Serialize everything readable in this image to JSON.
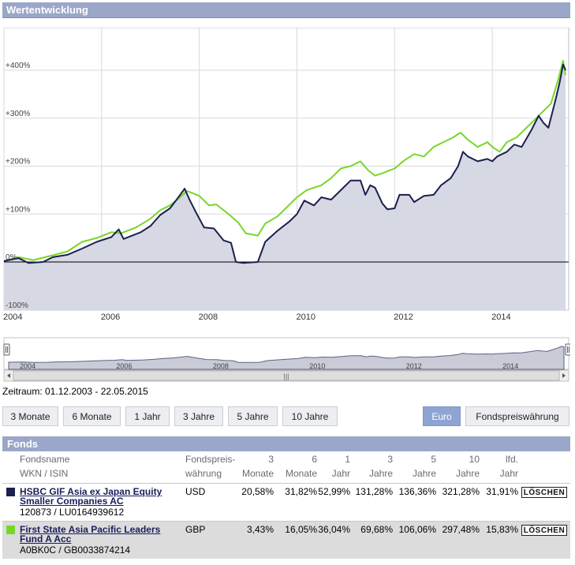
{
  "panel": {
    "title": "Wertentwicklung"
  },
  "chart_data": {
    "type": "area",
    "ylim": [
      -100,
      430
    ],
    "xlim": [
      2004,
      2015.5
    ],
    "x_ticks": [
      "2004",
      "2006",
      "2008",
      "2010",
      "2012",
      "2014"
    ],
    "y_ticks": [
      "+400%",
      "+300%",
      "+200%",
      "+100%",
      "0%",
      "-100%"
    ],
    "grid": true,
    "series": [
      {
        "name": "HSBC GIF Asia ex Japan Equity Smaller Companies AC",
        "color": "#1c1f4f",
        "fill": "area",
        "points": [
          [
            2004,
            2
          ],
          [
            2004.3,
            8
          ],
          [
            2004.5,
            -2
          ],
          [
            2004.8,
            0
          ],
          [
            2005.0,
            10
          ],
          [
            2005.3,
            15
          ],
          [
            2005.6,
            28
          ],
          [
            2005.9,
            42
          ],
          [
            2006.2,
            52
          ],
          [
            2006.35,
            68
          ],
          [
            2006.45,
            48
          ],
          [
            2006.8,
            62
          ],
          [
            2007.0,
            75
          ],
          [
            2007.2,
            98
          ],
          [
            2007.4,
            112
          ],
          [
            2007.55,
            132
          ],
          [
            2007.7,
            153
          ],
          [
            2007.8,
            130
          ],
          [
            2007.95,
            100
          ],
          [
            2008.1,
            72
          ],
          [
            2008.3,
            70
          ],
          [
            2008.5,
            45
          ],
          [
            2008.65,
            40
          ],
          [
            2008.75,
            0
          ],
          [
            2008.9,
            -2
          ],
          [
            2009.2,
            0
          ],
          [
            2009.35,
            42
          ],
          [
            2009.6,
            65
          ],
          [
            2009.85,
            85
          ],
          [
            2010.0,
            100
          ],
          [
            2010.15,
            128
          ],
          [
            2010.35,
            118
          ],
          [
            2010.5,
            135
          ],
          [
            2010.7,
            130
          ],
          [
            2010.9,
            150
          ],
          [
            2011.1,
            170
          ],
          [
            2011.3,
            170
          ],
          [
            2011.4,
            140
          ],
          [
            2011.5,
            160
          ],
          [
            2011.6,
            155
          ],
          [
            2011.75,
            122
          ],
          [
            2011.85,
            110
          ],
          [
            2012.0,
            112
          ],
          [
            2012.1,
            140
          ],
          [
            2012.3,
            140
          ],
          [
            2012.4,
            125
          ],
          [
            2012.6,
            138
          ],
          [
            2012.8,
            140
          ],
          [
            2012.95,
            160
          ],
          [
            2013.15,
            175
          ],
          [
            2013.3,
            200
          ],
          [
            2013.4,
            230
          ],
          [
            2013.5,
            220
          ],
          [
            2013.7,
            210
          ],
          [
            2013.9,
            215
          ],
          [
            2014.0,
            210
          ],
          [
            2014.1,
            220
          ],
          [
            2014.3,
            230
          ],
          [
            2014.45,
            245
          ],
          [
            2014.6,
            240
          ],
          [
            2014.8,
            275
          ],
          [
            2014.95,
            305
          ],
          [
            2015.05,
            290
          ],
          [
            2015.15,
            280
          ],
          [
            2015.3,
            340
          ],
          [
            2015.38,
            375
          ],
          [
            2015.45,
            412
          ],
          [
            2015.5,
            400
          ]
        ]
      },
      {
        "name": "First State Asia Pacific Leaders Fund A Acc",
        "color": "#78d62a",
        "fill": "none",
        "points": [
          [
            2004,
            2
          ],
          [
            2004.3,
            10
          ],
          [
            2004.6,
            4
          ],
          [
            2005.0,
            14
          ],
          [
            2005.3,
            22
          ],
          [
            2005.6,
            42
          ],
          [
            2005.9,
            50
          ],
          [
            2006.2,
            62
          ],
          [
            2006.4,
            60
          ],
          [
            2006.7,
            72
          ],
          [
            2007.0,
            90
          ],
          [
            2007.2,
            108
          ],
          [
            2007.4,
            118
          ],
          [
            2007.55,
            130
          ],
          [
            2007.75,
            148
          ],
          [
            2008.0,
            138
          ],
          [
            2008.2,
            118
          ],
          [
            2008.35,
            120
          ],
          [
            2008.6,
            100
          ],
          [
            2008.8,
            82
          ],
          [
            2008.95,
            60
          ],
          [
            2009.2,
            55
          ],
          [
            2009.35,
            80
          ],
          [
            2009.6,
            95
          ],
          [
            2009.85,
            120
          ],
          [
            2010.0,
            135
          ],
          [
            2010.2,
            150
          ],
          [
            2010.35,
            155
          ],
          [
            2010.5,
            160
          ],
          [
            2010.7,
            175
          ],
          [
            2010.9,
            195
          ],
          [
            2011.1,
            200
          ],
          [
            2011.3,
            210
          ],
          [
            2011.45,
            192
          ],
          [
            2011.6,
            180
          ],
          [
            2011.75,
            185
          ],
          [
            2012.0,
            195
          ],
          [
            2012.2,
            212
          ],
          [
            2012.4,
            225
          ],
          [
            2012.6,
            220
          ],
          [
            2012.8,
            240
          ],
          [
            2013.0,
            250
          ],
          [
            2013.2,
            260
          ],
          [
            2013.35,
            270
          ],
          [
            2013.5,
            255
          ],
          [
            2013.7,
            240
          ],
          [
            2013.9,
            250
          ],
          [
            2014.0,
            240
          ],
          [
            2014.15,
            230
          ],
          [
            2014.3,
            250
          ],
          [
            2014.5,
            260
          ],
          [
            2014.7,
            280
          ],
          [
            2014.9,
            300
          ],
          [
            2015.05,
            315
          ],
          [
            2015.2,
            330
          ],
          [
            2015.35,
            380
          ],
          [
            2015.45,
            420
          ],
          [
            2015.5,
            390
          ]
        ]
      }
    ]
  },
  "navigator": {
    "labels": [
      "2004",
      "2006",
      "2008",
      "2010",
      "2012",
      "2014"
    ],
    "handle_grip": "|||"
  },
  "period": {
    "text": "Zeitraum: 01.12.2003 - 22.05.2015"
  },
  "range_buttons": [
    "3 Monate",
    "6 Monate",
    "1 Jahr",
    "3 Jahre",
    "5 Jahre",
    "10 Jahre"
  ],
  "currency_buttons": {
    "euro": "Euro",
    "fund": "Fondspreiswährung",
    "active": "euro"
  },
  "fonds": {
    "title": "Fonds",
    "headers": {
      "name_line1": "Fondsname",
      "name_line2": "WKN / ISIN",
      "curr_line1": "Fondspreis-",
      "curr_line2": "währung",
      "periods": [
        {
          "top": "3",
          "bottom": "Monate"
        },
        {
          "top": "6",
          "bottom": "Monate"
        },
        {
          "top": "1",
          "bottom": "Jahr"
        },
        {
          "top": "3",
          "bottom": "Jahre"
        },
        {
          "top": "5",
          "bottom": "Jahre"
        },
        {
          "top": "10",
          "bottom": "Jahre"
        },
        {
          "top": "lfd.",
          "bottom": "Jahr"
        }
      ]
    },
    "rows": [
      {
        "color": "#1c1f4f",
        "name_line1": "HSBC GIF Asia ex Japan Equity",
        "name_line2": "Smaller Companies AC",
        "ids": "120873 / LU0164939612",
        "currency": "USD",
        "values": [
          "20,58%",
          "31,82%",
          "52,99%",
          "131,28%",
          "136,36%",
          "321,28%",
          "31,91%"
        ],
        "delete_label": "LÖSCHEN"
      },
      {
        "color": "#78d62a",
        "name_line1": "First State Asia Pacific Leaders",
        "name_line2": "Fund A Acc",
        "ids": "A0BK0C / GB0033874214",
        "currency": "GBP",
        "values": [
          "3,43%",
          "16,05%",
          "36,04%",
          "69,68%",
          "106,06%",
          "297,48%",
          "15,83%"
        ],
        "delete_label": "LÖSCHEN"
      }
    ]
  }
}
